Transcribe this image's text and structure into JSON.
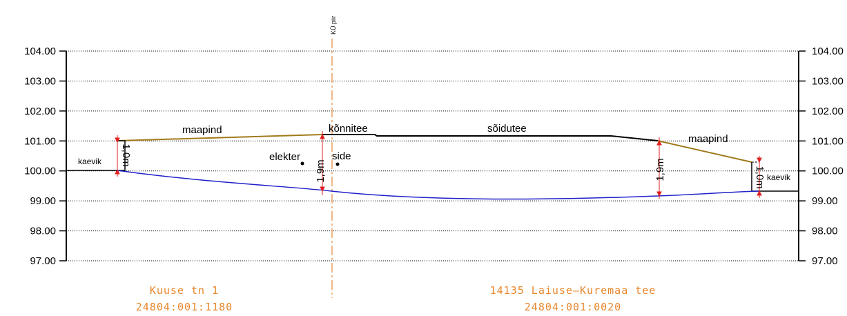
{
  "y_axis": {
    "ticks": [
      "104.00",
      "103.00",
      "102.00",
      "101.00",
      "100.00",
      "99.00",
      "98.00",
      "97.00"
    ],
    "min": 97.0,
    "max": 104.0
  },
  "boundary_label": "KÜ piir",
  "labels": {
    "maapind_left": "maapind",
    "konnitee": "kõnnitee",
    "soidutee": "sõidutee",
    "maapind_right": "maapind",
    "kaevik_left": "kaevik",
    "kaevik_right": "kaevik",
    "elekter": "elekter",
    "side": "side",
    "dim_left": "1,0m",
    "dim_mid": "1,9m",
    "dim_right_road": "1,9m",
    "dim_right": "1,0m"
  },
  "parcels": {
    "left_name": "Kuuse tn 1",
    "left_id": "24804:001:1180",
    "right_name": "14135 Laiuse–Kuremaa tee",
    "right_id": "24804:001:0020"
  },
  "colors": {
    "ground": "#a07a1a",
    "pipe": "#2020c8",
    "boundary": "#e8a060",
    "parcel_text": "#e8862a",
    "dimension": "#e02020"
  }
}
